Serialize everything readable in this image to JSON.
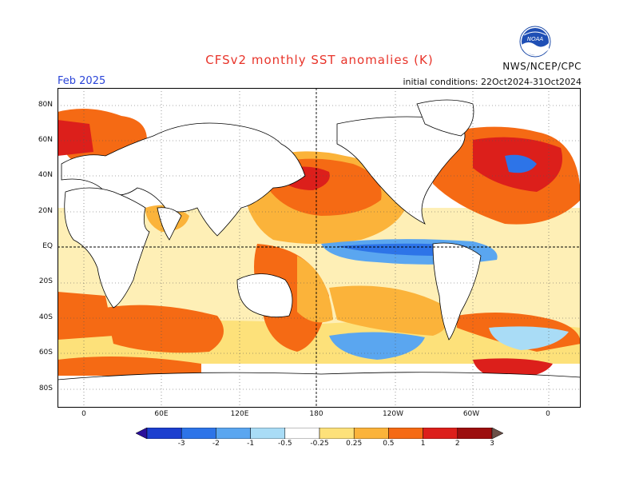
{
  "title": "CFSv2 monthly SST anomalies (K)",
  "credit": "NWS/NCEP/CPC",
  "month": "Feb 2025",
  "initial_conditions": "initial conditions: 22Oct2024-31Oct2024",
  "logo_text": "NOAA",
  "lat_labels": [
    "80N",
    "60N",
    "40N",
    "20N",
    "EQ",
    "20S",
    "40S",
    "60S",
    "80S"
  ],
  "lon_labels": [
    "0",
    "60E",
    "120E",
    "180",
    "120W",
    "60W",
    "0"
  ],
  "colorbar": {
    "labels": [
      "-3",
      "-2",
      "-1",
      "-0.5",
      "-0.25",
      "0.25",
      "0.5",
      "1",
      "2",
      "3"
    ],
    "colors": [
      "#2a0f9a",
      "#1c3fcf",
      "#2d74e8",
      "#5aa6f0",
      "#a9dcf6",
      "#ffffff",
      "#fde17a",
      "#fbb33a",
      "#f56a14",
      "#dc1f1b",
      "#9c0e0e",
      "#6b5048"
    ]
  },
  "colors": {
    "land": "#ffffff",
    "ocean_base": "#ffffff",
    "frame": "#000000"
  }
}
